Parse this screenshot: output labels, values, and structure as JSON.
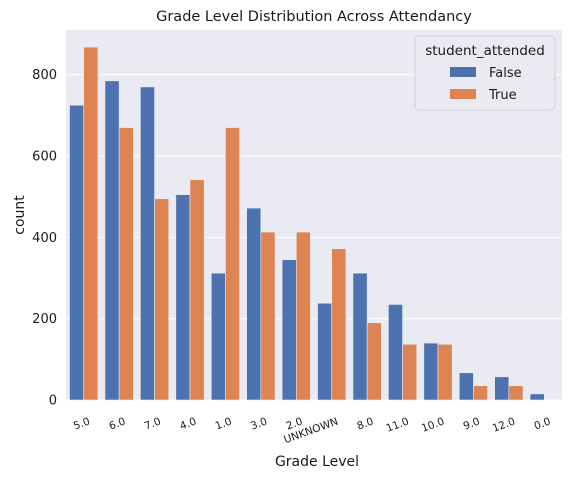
{
  "chart_data": {
    "type": "bar",
    "title": "Grade Level Distribution Across Attendancy",
    "xlabel": "Grade Level",
    "ylabel": "count",
    "categories": [
      "5.0",
      "6.0",
      "7.0",
      "4.0",
      "1.0",
      "3.0",
      "2.0",
      "UNKNOWN",
      "8.0",
      "11.0",
      "10.0",
      "9.0",
      "12.0",
      "0.0"
    ],
    "series": [
      {
        "name": "False",
        "color": "#4c72b0",
        "values": [
          725,
          785,
          770,
          505,
          312,
          472,
          345,
          238,
          312,
          235,
          140,
          67,
          57,
          15
        ]
      },
      {
        "name": "True",
        "color": "#dd8452",
        "values": [
          868,
          670,
          495,
          542,
          670,
          413,
          413,
          372,
          190,
          137,
          137,
          35,
          35,
          0
        ]
      }
    ],
    "ylim": [
      0,
      910
    ],
    "yticks": [
      0,
      200,
      400,
      600,
      800
    ],
    "legend": {
      "title": "student_attended",
      "placement": "top-right"
    },
    "grid": true,
    "background": "#eaeaf2",
    "grid_color": "#ffffff"
  }
}
